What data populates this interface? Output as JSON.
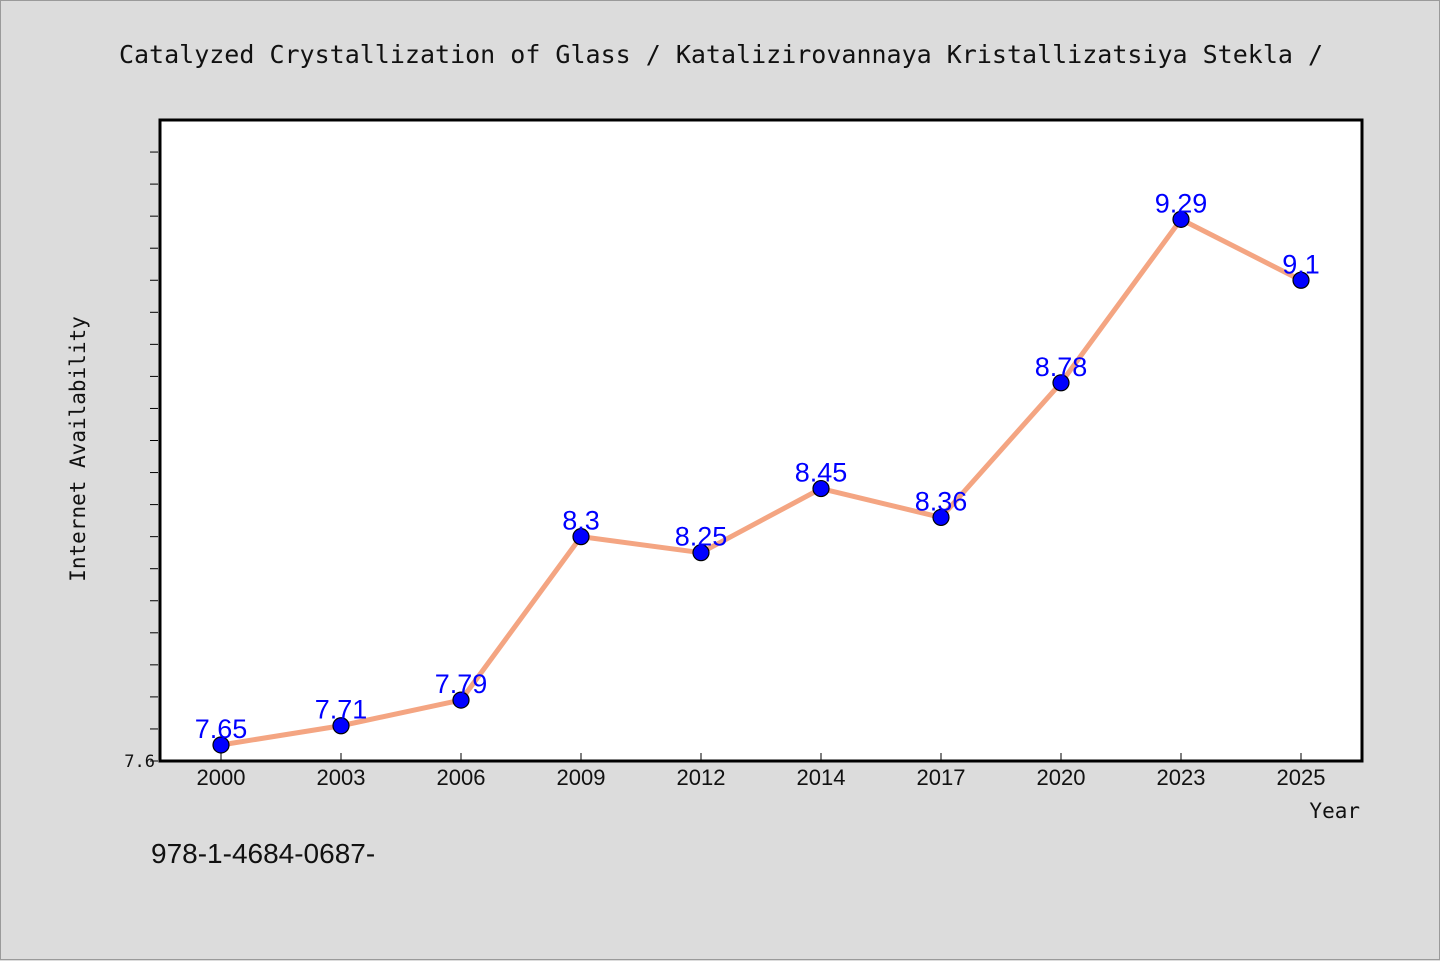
{
  "chart_data": {
    "type": "line",
    "title": "Catalyzed Crystallization of Glass / Katalizirovannaya Kristallizatsiya Stekla /",
    "xlabel": "Year",
    "ylabel": "Internet Availability",
    "categories": [
      "2000",
      "2003",
      "2006",
      "2009",
      "2012",
      "2014",
      "2017",
      "2020",
      "2023",
      "2025"
    ],
    "series": [
      {
        "values": [
          7.65,
          7.71,
          7.79,
          8.3,
          8.25,
          8.45,
          8.36,
          8.78,
          9.29,
          9.1
        ]
      }
    ],
    "data_labels": [
      "7.65",
      "7.71",
      "7.79",
      "8.3",
      "8.25",
      "8.45",
      "8.36",
      "8.78",
      "9.29",
      "9.1"
    ],
    "ylim": [
      7.6,
      9.6
    ],
    "y_tick_labels": [
      "7.6"
    ],
    "y_minor_tick_step": 0.1,
    "grid": false,
    "line_color": "#f4a582",
    "marker_color": "#0000ff",
    "label_color": "#0000ff",
    "background_color": "#dcdcdc",
    "plot_background_color": "#ffffff"
  },
  "footnote": "978-1-4684-0687-"
}
